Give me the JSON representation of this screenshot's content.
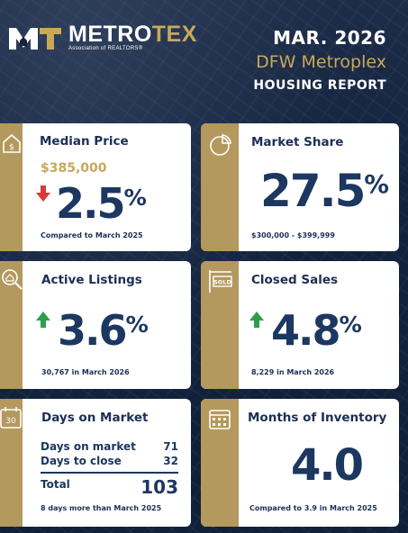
{
  "header": {
    "logo_name_a": "METRO",
    "logo_name_b": "TEX",
    "logo_sub": "Association of REALTORS®",
    "date": "MAR. 2026",
    "region": "DFW Metroplex",
    "report": "HOUSING REPORT"
  },
  "cards": {
    "median": {
      "title": "Median Price",
      "price": "$385,000",
      "value": "2.5",
      "unit": "%",
      "direction": "down",
      "note": "Compared to March 2025",
      "icon": "house-dollar-icon"
    },
    "share": {
      "title": "Market Share",
      "value": "27.5",
      "unit": "%",
      "note": "$300,000 - $399,999",
      "icon": "pie-chart-icon"
    },
    "active": {
      "title": "Active Listings",
      "value": "3.6",
      "unit": "%",
      "direction": "up",
      "note": "30,767 in March 2026",
      "icon": "magnifier-house-icon"
    },
    "closed": {
      "title": "Closed Sales",
      "value": "4.8",
      "unit": "%",
      "direction": "up",
      "note": "8,229 in March 2026",
      "icon": "sold-sign-icon"
    },
    "dom": {
      "title": "Days on Market",
      "rows": [
        {
          "label": "Days on market",
          "value": "71"
        },
        {
          "label": "Days to close",
          "value": "32"
        }
      ],
      "total_label": "Total",
      "total_value": "103",
      "note": "8 days more than March 2025",
      "icon_text": "30",
      "icon": "calendar-30-icon"
    },
    "inventory": {
      "title": "Months of Inventory",
      "value": "4.0",
      "note": "Compared to 3.9 in March 2025",
      "icon": "calendar-grid-icon"
    }
  },
  "colors": {
    "navy": "#1c3760",
    "gold": "#b3995d",
    "up": "#2e9e4f",
    "down": "#d83a3a"
  }
}
